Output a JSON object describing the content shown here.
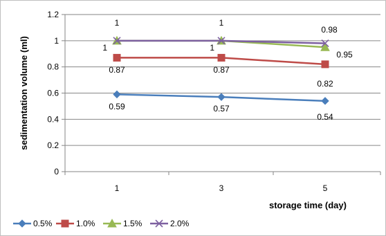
{
  "chart_data": {
    "type": "line",
    "title": "",
    "xlabel": "storage time (day)",
    "ylabel": "sedimentation volume (ml)",
    "x": [
      "1",
      "3",
      "5"
    ],
    "ylim": [
      0,
      1.2
    ],
    "yticks": [
      "0",
      "0.2",
      "0.4",
      "0.6",
      "0.8",
      "1",
      "1.2"
    ],
    "grid": true,
    "legend_position": "bottom",
    "series": [
      {
        "name": "0.5%",
        "values": [
          0.59,
          0.57,
          0.54
        ],
        "labels": [
          "0.59",
          "0.57",
          "0.54"
        ],
        "color": "#4a7ebb",
        "marker": "diamond"
      },
      {
        "name": "1.0%",
        "values": [
          0.87,
          0.87,
          0.82
        ],
        "labels": [
          "0.87",
          "0.87",
          "0.82"
        ],
        "color": "#be4b48",
        "marker": "square"
      },
      {
        "name": "1.5%",
        "values": [
          1.0,
          1.0,
          0.95
        ],
        "labels": [
          "1",
          "1",
          "0.95"
        ],
        "color": "#98b954",
        "marker": "triangle"
      },
      {
        "name": "2.0%",
        "values": [
          1.0,
          1.0,
          0.98
        ],
        "labels": [
          "1",
          "1",
          "0.98"
        ],
        "color": "#7d60a0",
        "marker": "x"
      }
    ]
  }
}
